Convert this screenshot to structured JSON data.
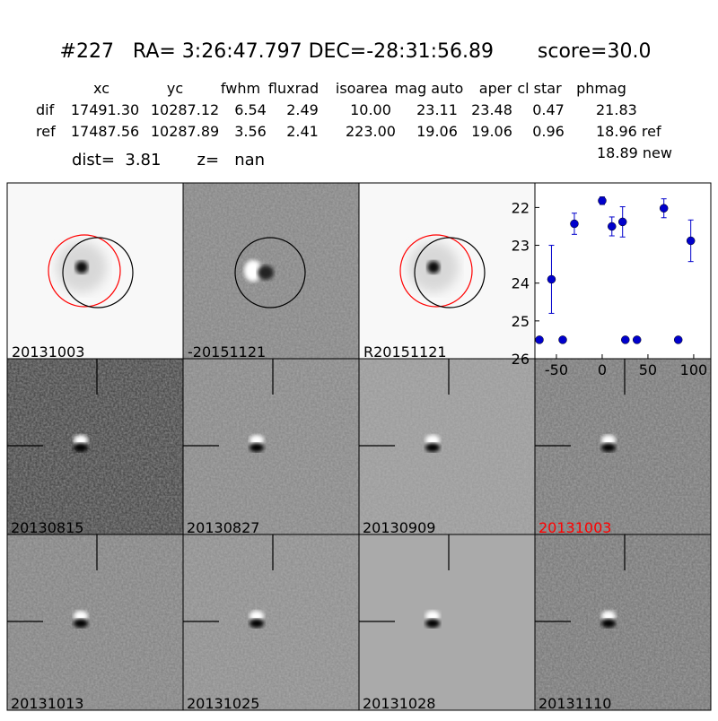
{
  "header": {
    "title": "#227   RA= 3:26:47.797 DEC=-28:31:56.89       score=30.0",
    "summary": "dist=  3.81       z=   nan"
  },
  "table": {
    "columns": [
      "xc",
      "yc",
      "fwhm",
      "fluxrad",
      "isoarea",
      "mag auto",
      "aper",
      "cl star",
      "phmag"
    ],
    "rows": [
      [
        "dif",
        "17491.30",
        "10287.12",
        "6.54",
        "2.49",
        "10.00",
        "23.11",
        "23.48",
        "0.47",
        "21.83"
      ],
      [
        "ref",
        "17487.56",
        "10287.89",
        "3.56",
        "2.41",
        "223.00",
        "19.06",
        "19.06",
        "0.96",
        "18.96 ref"
      ]
    ],
    "note": "18.89 new"
  },
  "top_stamps": [
    {
      "label": "20131003",
      "kind": "ref"
    },
    {
      "label": "-20151121",
      "kind": "diff"
    },
    {
      "label": "R20151121",
      "kind": "ref"
    }
  ],
  "bottom_stamps": [
    {
      "label": "20130815",
      "label_color": "#000000",
      "shade": "#4a4a4a"
    },
    {
      "label": "20130827",
      "label_color": "#000000",
      "shade": "#8a8a8a"
    },
    {
      "label": "20130909",
      "label_color": "#000000",
      "shade": "#9c9c9c"
    },
    {
      "label": "20131003",
      "label_color": "#ff0000",
      "shade": "#7c7c7c"
    },
    {
      "label": "20131013",
      "label_color": "#000000",
      "shade": "#858585"
    },
    {
      "label": "20131025",
      "label_color": "#000000",
      "shade": "#909090"
    },
    {
      "label": "20131028",
      "label_color": "#000000",
      "shade": "#aaaaaa"
    },
    {
      "label": "20131110",
      "label_color": "#000000",
      "shade": "#7a7a7a"
    }
  ],
  "chart_data": {
    "type": "scatter",
    "color": "#0000cc",
    "x": [
      -68.6,
      -55.4,
      -43.1,
      -30.4,
      0,
      10.6,
      22.3,
      25.3,
      38.0,
      67.4,
      83.1,
      96.8
    ],
    "values": [
      25.5,
      23.9,
      25.5,
      22.43,
      21.82,
      22.5,
      22.38,
      25.5,
      25.5,
      22.02,
      25.5,
      22.88
    ],
    "errors": [
      null,
      0.9,
      null,
      0.28,
      0.1,
      0.25,
      0.4,
      null,
      null,
      0.25,
      null,
      0.55
    ],
    "xlim": [
      -73.5,
      118.7
    ],
    "ylim": [
      26,
      21.35
    ],
    "invert_y": true,
    "xticks": [
      -50,
      0,
      50,
      100
    ],
    "yticks": [
      22,
      23,
      24,
      25,
      26
    ]
  }
}
